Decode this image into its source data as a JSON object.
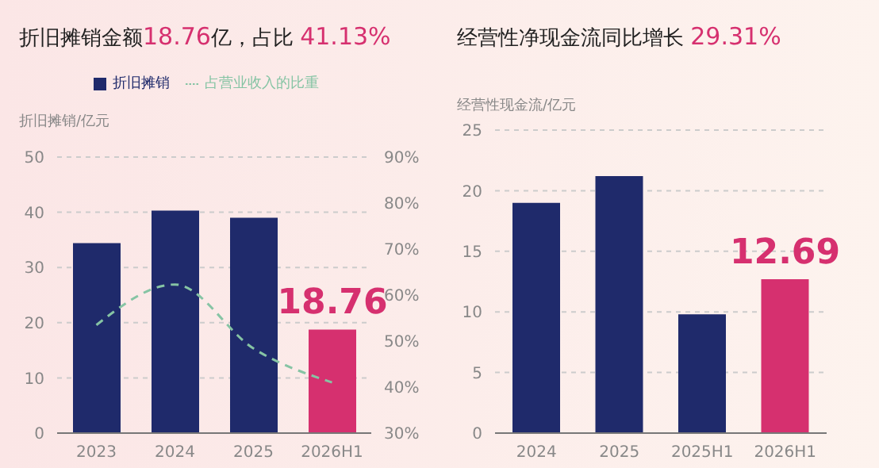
{
  "chart_data": [
    {
      "type": "bar",
      "title": "折旧摊销金额18.76亿，占比 41.13%",
      "ylabel": "折旧摊销/亿元",
      "categories": [
        "2023",
        "2024",
        "2025",
        "2026H1"
      ],
      "series": [
        {
          "name": "折旧摊销",
          "colors": [
            "#1f2a6b",
            "#1f2a6b",
            "#1f2a6b",
            "#d6306f"
          ],
          "values": [
            34.4,
            40.3,
            39.0,
            18.76
          ],
          "value_labels": [
            null,
            null,
            null,
            "18.76"
          ]
        },
        {
          "name": "占营业收入的比重",
          "type": "line",
          "axis": "y2",
          "color": "#86c4a4",
          "line_style": "dashed",
          "marker": "none",
          "values": [
            53.5,
            62.3,
            48.4,
            41
          ]
        }
      ],
      "ylim": [
        0,
        50
      ],
      "yticks": [
        0,
        10,
        20,
        30,
        40,
        50
      ],
      "y2lim": [
        30,
        90
      ],
      "y2ticks": [
        {
          "value": 30,
          "label": "30%"
        },
        {
          "value": 40,
          "label": "40%"
        },
        {
          "value": 50,
          "label": "50%"
        },
        {
          "value": 60,
          "label": "60%"
        },
        {
          "value": 70,
          "label": "70%"
        },
        {
          "value": 80,
          "label": "80%"
        },
        {
          "value": 90,
          "label": "90%"
        }
      ],
      "grid": "y",
      "legend": "top"
    },
    {
      "type": "bar",
      "title": "经营性净现金流同比增长 29.31%",
      "ylabel": "经营性现金流/亿元",
      "categories": [
        "2024",
        "2025",
        "2025H1",
        "2026H1"
      ],
      "series": [
        {
          "colors": [
            "#1f2a6b",
            "#1f2a6b",
            "#1f2a6b",
            "#d6306f"
          ],
          "values": [
            19.0,
            21.2,
            9.8,
            12.69
          ],
          "value_labels": [
            null,
            null,
            null,
            "12.69"
          ]
        }
      ],
      "ylim": [
        0,
        25
      ],
      "yticks": [
        0,
        5,
        10,
        15,
        20,
        25
      ],
      "grid": "y",
      "legend": false
    }
  ]
}
